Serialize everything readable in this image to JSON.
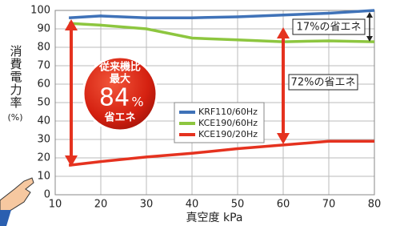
{
  "chart_data": {
    "type": "line",
    "y_label": "消費電力率",
    "y_unit": "(%)",
    "x_label": "真空度 kPa",
    "x": [
      13,
      20,
      30,
      40,
      50,
      60,
      70,
      80
    ],
    "series": [
      {
        "name": "KRF110/60Hz",
        "color": "#3f72b8",
        "values": [
          96,
          97,
          96,
          96,
          96.5,
          97.5,
          98.5,
          100
        ]
      },
      {
        "name": "KCE190/60Hz",
        "color": "#8dc63f",
        "values": [
          93,
          92,
          90,
          85,
          84,
          83,
          83.5,
          83
        ]
      },
      {
        "name": "KCE190/20Hz",
        "color": "#e5321f",
        "values": [
          16,
          18,
          20.5,
          22.5,
          25,
          27,
          29,
          29
        ]
      }
    ],
    "xlim": [
      10,
      80
    ],
    "xticks": [
      10,
      20,
      30,
      40,
      50,
      60,
      70,
      80
    ],
    "ylim": [
      0,
      100
    ],
    "yticks": [
      0,
      10,
      20,
      30,
      40,
      50,
      60,
      70,
      80,
      90,
      100
    ],
    "grid": true,
    "annotations": {
      "saving_small": "17%の省エネ",
      "saving_large": "72%の省エネ",
      "badge_line1": "従来機比",
      "badge_line2": "最大",
      "badge_number": "84",
      "badge_unit": "%",
      "badge_line3": "省エネ"
    }
  }
}
